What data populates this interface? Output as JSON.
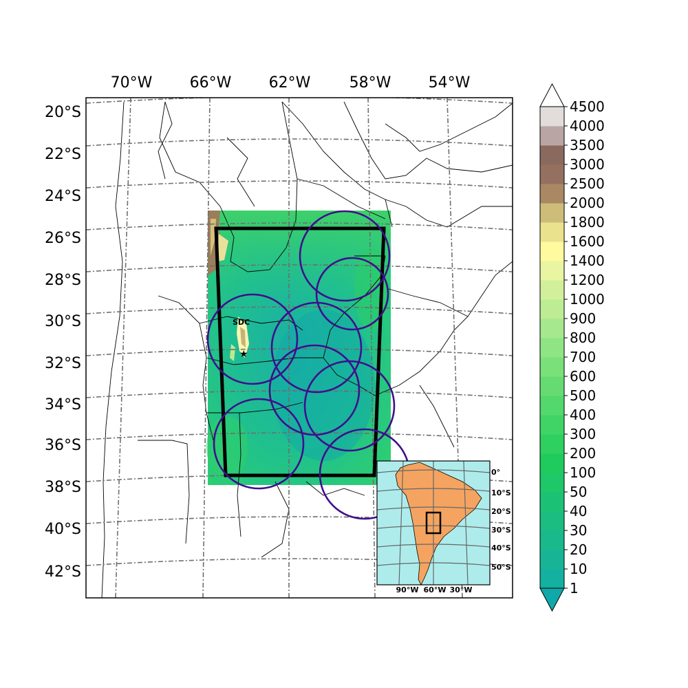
{
  "map": {
    "lon_labels": [
      "70°W",
      "66°W",
      "62°W",
      "58°W",
      "54°W"
    ],
    "lat_labels": [
      "20°S",
      "22°S",
      "24°S",
      "26°S",
      "28°S",
      "30°S",
      "32°S",
      "34°S",
      "36°S",
      "38°S",
      "40°S",
      "42°S"
    ],
    "place_label": "SDC",
    "study_domain_lon_range": [
      "66°W",
      "57°W"
    ],
    "study_domain_lat_range": [
      "25.5°S",
      "37.5°S"
    ],
    "radar_ring_count": 8,
    "colors": {
      "ring": "#3f0f8c",
      "domain_box": "#000000",
      "lowland": "#1fb8a6",
      "highland": "#9a7d5a"
    }
  },
  "colorbar": {
    "title": "",
    "levels": [
      "1",
      "10",
      "20",
      "30",
      "40",
      "50",
      "100",
      "200",
      "300",
      "400",
      "500",
      "600",
      "700",
      "800",
      "900",
      "1000",
      "1200",
      "1400",
      "1600",
      "1800",
      "2000",
      "2500",
      "3000",
      "3500",
      "4000",
      "4500"
    ],
    "colors": [
      "#10a9a9",
      "#14b0a0",
      "#17b596",
      "#19b98b",
      "#1bbd80",
      "#1cc274",
      "#1ec768",
      "#20cb5d",
      "#2ed060",
      "#40d466",
      "#53d86c",
      "#66db72",
      "#7ae07a",
      "#8fe483",
      "#a6e88d",
      "#bdec95",
      "#d2f09b",
      "#e9f5a0",
      "#fffb9e",
      "#ebe28e",
      "#cdbd79",
      "#a98863",
      "#957060",
      "#8a6a5f",
      "#b9a6a4",
      "#e2dcdb"
    ]
  },
  "inset": {
    "lat_labels": [
      "0°",
      "10°S",
      "20°S",
      "30°S",
      "40°S",
      "50°S"
    ],
    "lon_labels": [
      "90°W",
      "60°W",
      "30°W"
    ],
    "colors": {
      "ocean": "#aeecec",
      "land": "#f4a460"
    }
  }
}
